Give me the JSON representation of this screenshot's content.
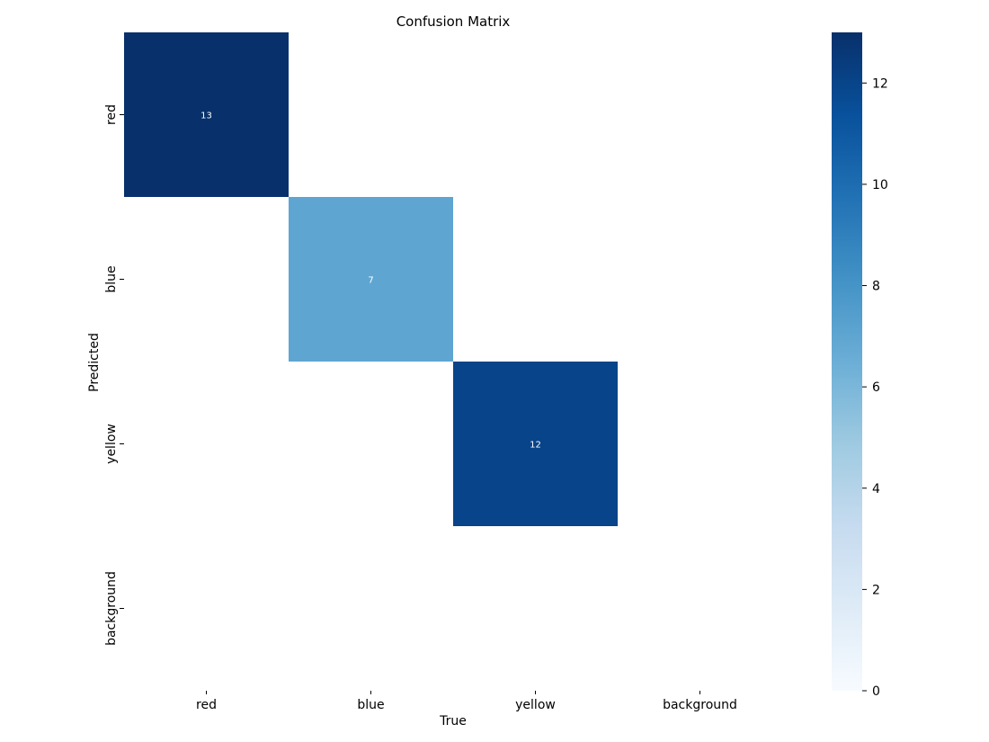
{
  "chart_data": {
    "type": "heatmap",
    "title": "Confusion Matrix",
    "xlabel": "True",
    "ylabel": "Predicted",
    "x_categories": [
      "red",
      "blue",
      "yellow",
      "background"
    ],
    "y_categories": [
      "red",
      "blue",
      "yellow",
      "background"
    ],
    "values": [
      [
        13,
        null,
        null,
        null
      ],
      [
        null,
        7,
        null,
        null
      ],
      [
        null,
        null,
        12,
        null
      ],
      [
        null,
        null,
        null,
        null
      ]
    ],
    "colorbar": {
      "colormap": "Blues",
      "range": [
        0,
        13
      ],
      "ticks": [
        0,
        2,
        4,
        6,
        8,
        10,
        12
      ]
    },
    "grid": false
  }
}
